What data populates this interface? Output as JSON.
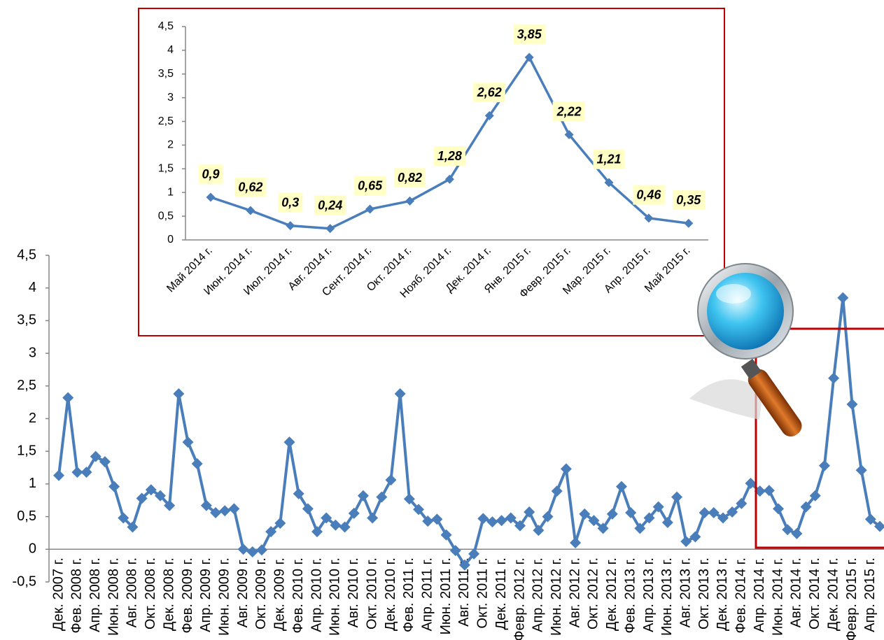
{
  "chart_data": [
    {
      "type": "line",
      "color": "#4a7ebb",
      "categories": [
        "Дек. 2007 г.",
        null,
        "Фев. 2008 г.",
        null,
        "Апр. 2008 г.",
        null,
        "Июн. 2008 г.",
        null,
        "Авг. 2008 г.",
        null,
        "Окт. 2008 г.",
        null,
        "Дек. 2008 г.",
        null,
        "Фев. 2009 г.",
        null,
        "Апр. 2009 г.",
        null,
        "Июн. 2009 г.",
        null,
        "Авг. 2009 г.",
        null,
        "Окт. 2009 г.",
        null,
        "Дек. 2009 г.",
        null,
        "Фев. 2010 г.",
        null,
        "Апр. 2010 г.",
        null,
        "Июн. 2010 г.",
        null,
        "Авг. 2010 г.",
        null,
        "Окт. 2010 г.",
        null,
        "Дек. 2010 г.",
        null,
        "Фев. 2011 г.",
        null,
        "Апр. 2011 г.",
        null,
        "Июн. 2011 г.",
        null,
        "Авг. 2011 г.",
        null,
        "Окт. 2011 г.",
        null,
        "Дек. 2011 г.",
        null,
        "Февр. 2012 г.",
        null,
        "Апр. 2012 г.",
        null,
        "Июн. 2012 г.",
        null,
        "Авг. 2012 г.",
        null,
        "Окт. 2012 г.",
        null,
        "Дек. 2012 г.",
        null,
        "Фев. 2013 г.",
        null,
        "Апр. 2013 г.",
        null,
        "Июн. 2013 г.",
        null,
        "Авг. 2013 г.",
        null,
        "Окт. 2013 г.",
        null,
        "Дек. 2013 г.",
        null,
        "Фев. 2014 г.",
        null,
        "Апр. 2014 г.",
        null,
        "Июн. 2014 г.",
        null,
        "Авг. 2014 г.",
        null,
        "Окт. 2014 г.",
        null,
        "Дек. 2014 г.",
        null,
        "Февр. 2015 г.",
        null,
        "Апр. 2015 г.",
        null
      ],
      "values": [
        1.13,
        2.32,
        1.18,
        1.18,
        1.42,
        1.34,
        0.96,
        0.48,
        0.34,
        0.78,
        0.91,
        0.82,
        0.67,
        2.38,
        1.64,
        1.31,
        0.67,
        0.56,
        0.59,
        0.62,
        0.0,
        -0.04,
        -0.01,
        0.27,
        0.4,
        1.64,
        0.85,
        0.62,
        0.27,
        0.48,
        0.37,
        0.34,
        0.55,
        0.82,
        0.48,
        0.8,
        1.06,
        2.38,
        0.77,
        0.61,
        0.43,
        0.46,
        0.22,
        -0.02,
        -0.24,
        -0.07,
        0.47,
        0.42,
        0.44,
        0.48,
        0.36,
        0.57,
        0.29,
        0.5,
        0.89,
        1.23,
        0.1,
        0.54,
        0.44,
        0.32,
        0.54,
        0.96,
        0.56,
        0.32,
        0.48,
        0.65,
        0.41,
        0.8,
        0.12,
        0.19,
        0.56,
        0.56,
        0.48,
        0.57,
        0.7,
        1.01,
        0.89,
        0.9,
        0.62,
        0.3,
        0.24,
        0.65,
        0.82,
        1.28,
        2.62,
        3.85,
        2.22,
        1.21,
        0.46,
        0.35
      ],
      "ylim": [
        -0.5,
        4.5
      ],
      "yticks": [
        {
          "value": -0.5,
          "label": "-0,5"
        },
        0,
        {
          "value": 0.5,
          "label": "0,5"
        },
        1,
        {
          "value": 1.5,
          "label": "1,5"
        },
        2,
        {
          "value": 2.5,
          "label": "2,5"
        },
        3,
        {
          "value": 3.5,
          "label": "3,5"
        },
        4,
        {
          "value": 4.5,
          "label": "4,5"
        }
      ],
      "grid": false
    },
    {
      "type": "line",
      "color": "#4a7ebb",
      "categories": [
        "Май 2014 г.",
        "Июн. 2014 г.",
        "Июл. 2014 г.",
        "Авг. 2014 г.",
        "Сент. 2014 г.",
        "Окт. 2014 г.",
        "Нояб. 2014 г.",
        "Дек. 2014 г.",
        "Янв. 2015 г.",
        "Февр. 2015 г.",
        "Мар. 2015 г.",
        "Апр. 2015 г.",
        "Май 2015 г."
      ],
      "values": [
        0.9,
        0.62,
        0.3,
        0.24,
        0.65,
        0.82,
        1.28,
        2.62,
        3.85,
        2.22,
        1.21,
        0.46,
        0.35
      ],
      "value_labels": [
        "0,9",
        "0,62",
        "0,3",
        "0,24",
        "0,65",
        "0,82",
        "1,28",
        "2,62",
        "3,85",
        "2,22",
        "1,21",
        "0,46",
        "0,35"
      ],
      "ylim": [
        0,
        4.5
      ],
      "yticks": [
        0,
        {
          "value": 0.5,
          "label": "0,5"
        },
        1,
        {
          "value": 1.5,
          "label": "1,5"
        },
        2,
        {
          "value": 2.5,
          "label": "2,5"
        },
        3,
        {
          "value": 3.5,
          "label": "3,5"
        },
        4,
        {
          "value": 4.5,
          "label": "4,5"
        }
      ],
      "grid": false
    }
  ]
}
